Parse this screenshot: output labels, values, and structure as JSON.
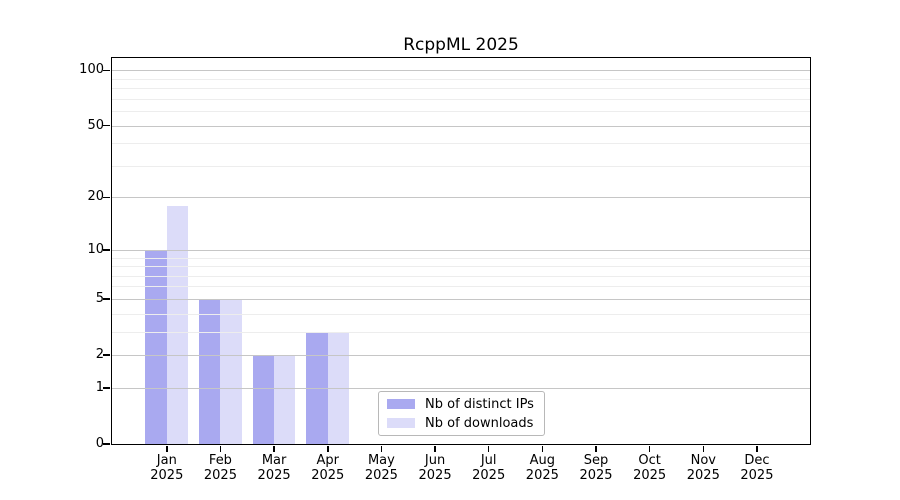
{
  "title": "RcppML 2025",
  "chart_data": {
    "type": "bar",
    "title": "RcppML 2025",
    "xlabel": "",
    "ylabel": "",
    "categories": [
      {
        "month": "Jan",
        "year": "2025"
      },
      {
        "month": "Feb",
        "year": "2025"
      },
      {
        "month": "Mar",
        "year": "2025"
      },
      {
        "month": "Apr",
        "year": "2025"
      },
      {
        "month": "May",
        "year": "2025"
      },
      {
        "month": "Jun",
        "year": "2025"
      },
      {
        "month": "Jul",
        "year": "2025"
      },
      {
        "month": "Aug",
        "year": "2025"
      },
      {
        "month": "Sep",
        "year": "2025"
      },
      {
        "month": "Oct",
        "year": "2025"
      },
      {
        "month": "Nov",
        "year": "2025"
      },
      {
        "month": "Dec",
        "year": "2025"
      }
    ],
    "series": [
      {
        "name": "Nb of distinct IPs",
        "color": "#a9a9f0",
        "values": [
          10,
          5,
          2,
          3,
          0,
          0,
          0,
          0,
          0,
          0,
          0,
          0
        ]
      },
      {
        "name": "Nb of downloads",
        "color": "#dcdcf9",
        "values": [
          18,
          5,
          2,
          3,
          0,
          0,
          0,
          0,
          0,
          0,
          0,
          0
        ]
      }
    ],
    "yscale": "log1p",
    "ylim": [
      0,
      116.5
    ],
    "y_major_ticks": [
      0,
      1,
      2,
      5,
      10,
      20,
      50,
      100
    ],
    "y_minor_ticks": [
      3,
      4,
      6,
      7,
      8,
      9,
      30,
      40,
      60,
      70,
      80,
      90
    ],
    "grid": "horizontal",
    "legend_position": "lower center"
  },
  "colors": {
    "background": "#ffffff",
    "axis": "#000000",
    "grid_major": "#c6c6c6",
    "grid_minor": "#ededed",
    "legend_border": "#b8b8b8",
    "bar_distinct_ips": "#a9a9f0",
    "bar_downloads": "#dcdcf9"
  }
}
